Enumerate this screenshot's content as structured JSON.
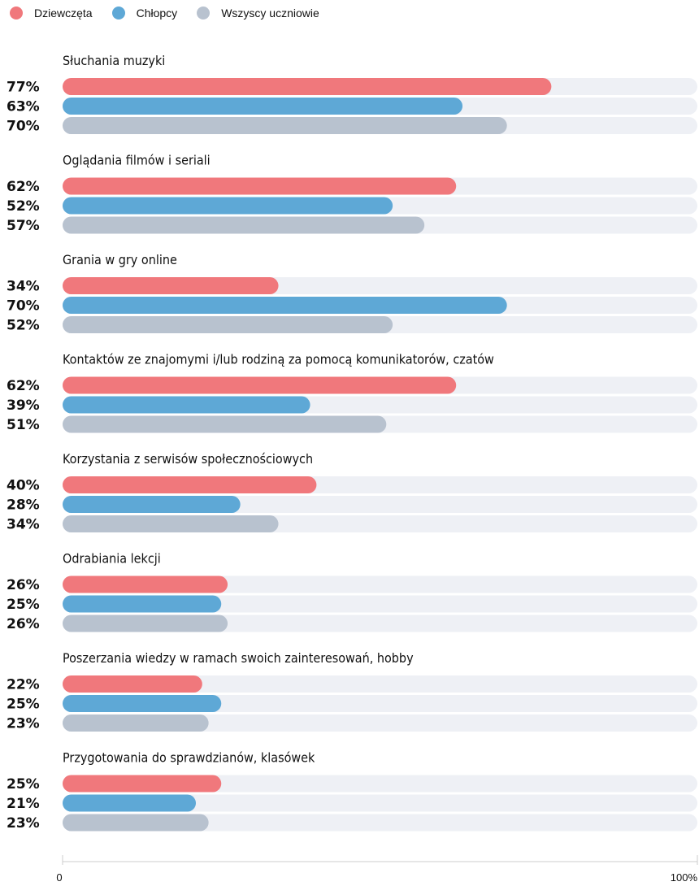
{
  "legend": {
    "girls": "Dziewczęta",
    "boys": "Chłopcy",
    "all": "Wszyscy uczniowie"
  },
  "colors": {
    "girls": "#f0787c",
    "boys": "#5ea8d6",
    "all": "#b8c2cf",
    "track": "#eef0f5"
  },
  "chart_data": {
    "type": "bar",
    "orientation": "horizontal",
    "categories": [
      "Słuchania muzyki",
      "Oglądania filmów i seriali",
      "Grania w gry online",
      "Kontaktów ze znajomymi i/lub rodziną za pomocą komunikatorów, czatów",
      "Korzystania z serwisów społecznościowych",
      "Odrabiania lekcji",
      "Poszerzania wiedzy w ramach swoich zainteresowań, hobby",
      "Przygotowania do sprawdzianów, klasówek"
    ],
    "series": [
      {
        "name": "Dziewczęta",
        "key": "girls",
        "values": [
          77,
          62,
          34,
          62,
          40,
          26,
          22,
          25
        ]
      },
      {
        "name": "Chłopcy",
        "key": "boys",
        "values": [
          63,
          52,
          70,
          39,
          28,
          25,
          25,
          21
        ]
      },
      {
        "name": "Wszyscy uczniowie",
        "key": "all",
        "values": [
          70,
          57,
          52,
          51,
          34,
          26,
          23,
          23
        ]
      }
    ],
    "xlim": [
      0,
      100
    ],
    "x_tick_labels": [
      "0",
      "100%"
    ],
    "value_suffix": "%",
    "grid": false,
    "legend_position": "top-left"
  }
}
